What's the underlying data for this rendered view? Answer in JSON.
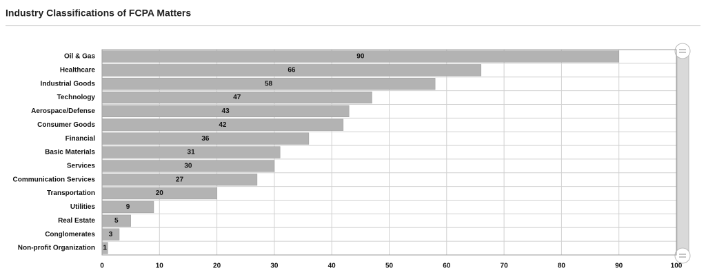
{
  "chart_data": {
    "type": "bar",
    "horizontal": true,
    "title": "Industry Classifications of FCPA Matters",
    "categories": [
      "Oil & Gas",
      "Healthcare",
      "Industrial Goods",
      "Technology",
      "Aerospace/Defense",
      "Consumer Goods",
      "Financial",
      "Basic Materials",
      "Services",
      "Communication Services",
      "Transportation",
      "Utilities",
      "Real Estate",
      "Conglomerates",
      "Non-profit Organization"
    ],
    "values": [
      90,
      66,
      58,
      47,
      43,
      42,
      36,
      31,
      30,
      27,
      20,
      9,
      5,
      3,
      1
    ],
    "color": "#b3b3b3",
    "xlim": [
      0,
      100
    ],
    "xticks": [
      0,
      10,
      20,
      30,
      40,
      50,
      60,
      70,
      80,
      90,
      100
    ],
    "grid": true
  }
}
